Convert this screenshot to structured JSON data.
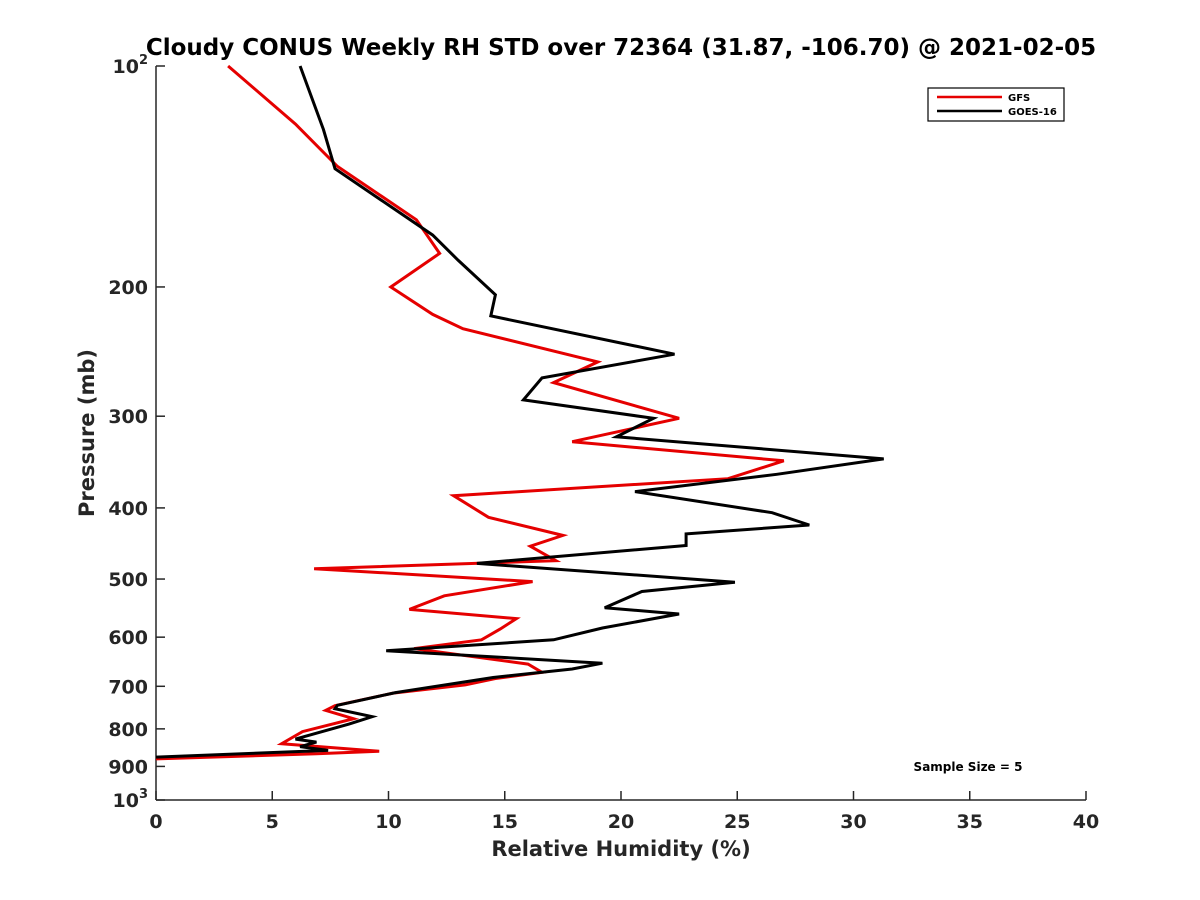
{
  "chart_data": {
    "type": "line",
    "title": "Cloudy CONUS Weekly RH STD over 72364 (31.87, -106.70) @ 2021-02-05",
    "xlabel": "Relative Humidity (%)",
    "ylabel": "Pressure (mb)",
    "xlim": [
      0,
      40
    ],
    "ylim": [
      100,
      1000
    ],
    "y_scale": "log",
    "y_reversed": true,
    "x_ticks": [
      "0",
      "5",
      "10",
      "15",
      "20",
      "25",
      "30",
      "35",
      "40"
    ],
    "y_ticks": [
      {
        "value": 100,
        "base": "10",
        "exp": "2"
      },
      {
        "value": 200,
        "label": "200"
      },
      {
        "value": 300,
        "label": "300"
      },
      {
        "value": 400,
        "label": "400"
      },
      {
        "value": 500,
        "label": "500"
      },
      {
        "value": 600,
        "label": "600"
      },
      {
        "value": 700,
        "label": "700"
      },
      {
        "value": 800,
        "label": "800"
      },
      {
        "value": 900,
        "label": "900"
      },
      {
        "value": 1000,
        "base": "10",
        "exp": "3"
      }
    ],
    "grid": false,
    "legend_position": "top-right",
    "annotation": "Sample Size = 5",
    "series": [
      {
        "name": "GFS",
        "color": "#e50000",
        "points": [
          [
            3.1,
            100
          ],
          [
            6.0,
            120
          ],
          [
            7.8,
            137
          ],
          [
            11.2,
            162
          ],
          [
            12.2,
            180
          ],
          [
            10.1,
            200
          ],
          [
            11.9,
            218
          ],
          [
            13.2,
            228
          ],
          [
            19.0,
            253
          ],
          [
            17.1,
            270
          ],
          [
            22.5,
            302
          ],
          [
            17.9,
            325
          ],
          [
            27.0,
            345
          ],
          [
            24.6,
            365
          ],
          [
            12.8,
            385
          ],
          [
            14.3,
            412
          ],
          [
            17.5,
            436
          ],
          [
            16.1,
            451
          ],
          [
            17.2,
            472
          ],
          [
            6.8,
            484
          ],
          [
            16.2,
            504
          ],
          [
            12.4,
            527
          ],
          [
            10.9,
            550
          ],
          [
            15.5,
            566
          ],
          [
            14.8,
            585
          ],
          [
            14.0,
            605
          ],
          [
            11.1,
            622
          ],
          [
            16.0,
            653
          ],
          [
            16.6,
            670
          ],
          [
            14.6,
            683
          ],
          [
            13.3,
            697
          ],
          [
            10.2,
            715
          ],
          [
            7.7,
            744
          ],
          [
            7.3,
            755
          ],
          [
            8.5,
            775
          ],
          [
            6.3,
            807
          ],
          [
            5.4,
            838
          ],
          [
            9.6,
            858
          ],
          [
            6.9,
            865
          ],
          [
            0.0,
            879
          ]
        ]
      },
      {
        "name": "GOES-16",
        "color": "#000000",
        "points": [
          [
            6.2,
            100
          ],
          [
            7.2,
            122
          ],
          [
            7.7,
            138
          ],
          [
            11.9,
            170
          ],
          [
            13.0,
            184
          ],
          [
            14.6,
            205
          ],
          [
            14.4,
            219
          ],
          [
            22.3,
            247
          ],
          [
            16.6,
            266
          ],
          [
            15.8,
            285
          ],
          [
            21.4,
            302
          ],
          [
            19.8,
            320
          ],
          [
            31.3,
            343
          ],
          [
            26.7,
            360
          ],
          [
            20.6,
            380
          ],
          [
            26.5,
            406
          ],
          [
            28.1,
            422
          ],
          [
            22.8,
            434
          ],
          [
            22.8,
            450
          ],
          [
            13.8,
            476
          ],
          [
            24.9,
            505
          ],
          [
            20.9,
            520
          ],
          [
            19.3,
            547
          ],
          [
            22.5,
            558
          ],
          [
            19.2,
            583
          ],
          [
            17.1,
            605
          ],
          [
            9.9,
            626
          ],
          [
            19.2,
            651
          ],
          [
            17.9,
            663
          ],
          [
            14.5,
            681
          ],
          [
            10.3,
            714
          ],
          [
            7.8,
            743
          ],
          [
            7.7,
            751
          ],
          [
            9.3,
            770
          ],
          [
            8.3,
            788
          ],
          [
            6.0,
            826
          ],
          [
            6.9,
            834
          ],
          [
            6.2,
            846
          ],
          [
            7.4,
            856
          ],
          [
            0.0,
            874
          ]
        ]
      }
    ]
  }
}
